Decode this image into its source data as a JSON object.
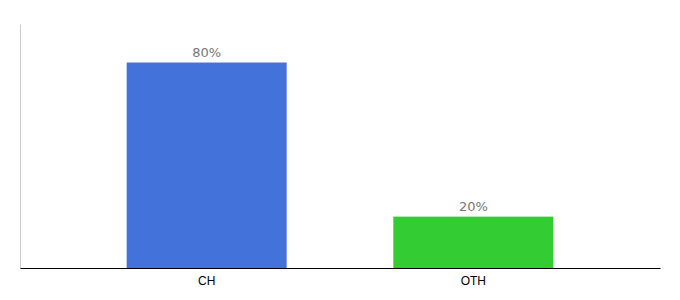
{
  "chart_data": {
    "type": "bar",
    "categories": [
      "CH",
      "OTH"
    ],
    "values": [
      80,
      20
    ],
    "value_labels": [
      "80%",
      "20%"
    ],
    "colors": [
      "#4472db",
      "#33cc33"
    ],
    "ylim": [
      0,
      95
    ],
    "data_labels": true,
    "tick_labels": "x",
    "grid": false
  }
}
